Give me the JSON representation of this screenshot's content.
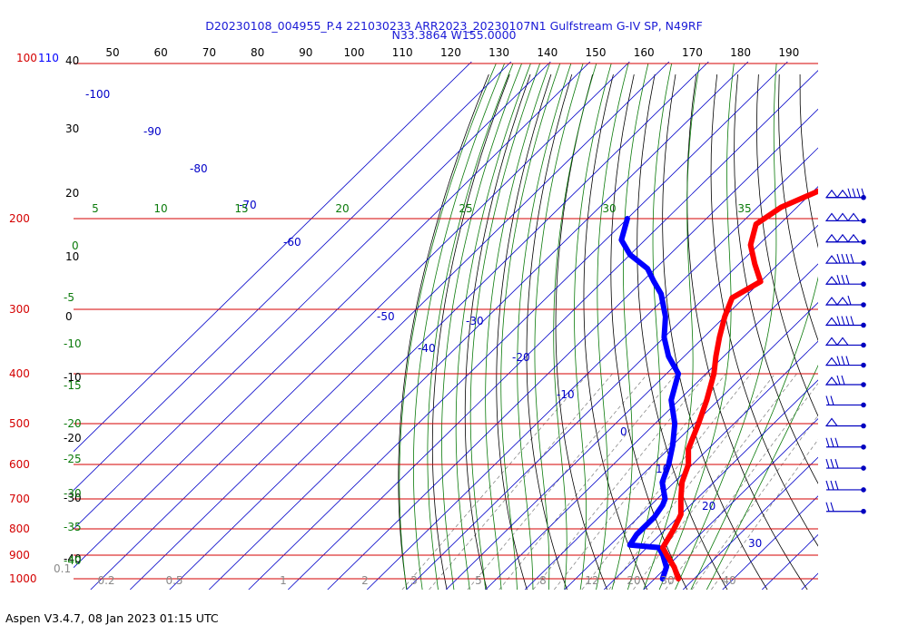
{
  "title_line1": "D20230108_004955_P.4 221030233 ARR2023_20230107N1 Gulfstream G-IV SP, N49RF",
  "title_line2": "N33.3864 W155.0000",
  "footer": "Aspen V3.4.7, 08 Jan 2023  01:15 UTC",
  "colors": {
    "isobar": "#d40000",
    "isotherm": "#0000c8",
    "dry_adiabat": "#000000",
    "moist_adiabat": "#0a7a0a",
    "mixing_ratio": "#8a8a8a",
    "temperature": "#ff0000",
    "dewpoint": "#0000ff",
    "wind": "#0000c0"
  },
  "chart_data": {
    "type": "skew-t",
    "pressure_levels_hPa": [
      "100-110",
      "200",
      "300",
      "400",
      "500",
      "600",
      "700",
      "800",
      "900",
      "1000"
    ],
    "top_scale": [
      "50",
      "60",
      "70",
      "80",
      "90",
      "100",
      "110",
      "120",
      "130",
      "140",
      "150",
      "160",
      "170",
      "180",
      "190"
    ],
    "left_scale": [
      "40",
      "30",
      "20",
      "10",
      "0",
      "-10",
      "-20",
      "-30",
      "-40"
    ],
    "isotherm_labels": [
      "-100",
      "-90",
      "-80",
      "-70",
      "-60",
      "-50",
      "-40",
      "-30",
      "-20",
      "-10",
      "0",
      "10",
      "20",
      "30"
    ],
    "moist_labels_top": [
      "5",
      "10",
      "15",
      "20",
      "25",
      "30",
      "35"
    ],
    "moist_labels_left": [
      "0",
      "-5",
      "-10",
      "-15",
      "-20",
      "-25",
      "-30",
      "-35",
      "-40"
    ],
    "mixing_ratio_labels": [
      "0.1",
      "0.2",
      "0.5",
      "1",
      "2",
      "3",
      "5",
      "8",
      "12",
      "20",
      "30",
      "40"
    ],
    "temperature_profile": [
      {
        "p": 1000,
        "t": 26
      },
      {
        "p": 950,
        "t": 22
      },
      {
        "p": 900,
        "t": 17
      },
      {
        "p": 870,
        "t": 14
      },
      {
        "p": 800,
        "t": 12
      },
      {
        "p": 750,
        "t": 10
      },
      {
        "p": 700,
        "t": 6
      },
      {
        "p": 650,
        "t": 2
      },
      {
        "p": 600,
        "t": -1
      },
      {
        "p": 560,
        "t": -5
      },
      {
        "p": 500,
        "t": -9
      },
      {
        "p": 450,
        "t": -13
      },
      {
        "p": 400,
        "t": -18
      },
      {
        "p": 370,
        "t": -22
      },
      {
        "p": 340,
        "t": -26
      },
      {
        "p": 310,
        "t": -30
      },
      {
        "p": 285,
        "t": -33
      },
      {
        "p": 265,
        "t": -30
      },
      {
        "p": 245,
        "t": -36
      },
      {
        "p": 225,
        "t": -42
      },
      {
        "p": 205,
        "t": -46
      },
      {
        "p": 190,
        "t": -44
      },
      {
        "p": 175,
        "t": -38
      },
      {
        "p": 165,
        "t": -36
      }
    ],
    "dewpoint_profile": [
      {
        "p": 1000,
        "t": 22
      },
      {
        "p": 950,
        "t": 20
      },
      {
        "p": 900,
        "t": 16
      },
      {
        "p": 870,
        "t": 13
      },
      {
        "p": 860,
        "t": 5
      },
      {
        "p": 820,
        "t": 4
      },
      {
        "p": 760,
        "t": 4
      },
      {
        "p": 720,
        "t": 3
      },
      {
        "p": 700,
        "t": 2
      },
      {
        "p": 650,
        "t": -3
      },
      {
        "p": 600,
        "t": -6
      },
      {
        "p": 550,
        "t": -10
      },
      {
        "p": 500,
        "t": -15
      },
      {
        "p": 450,
        "t": -22
      },
      {
        "p": 400,
        "t": -27
      },
      {
        "p": 370,
        "t": -34
      },
      {
        "p": 340,
        "t": -40
      },
      {
        "p": 310,
        "t": -45
      },
      {
        "p": 280,
        "t": -52
      },
      {
        "p": 265,
        "t": -57
      },
      {
        "p": 250,
        "t": -62
      },
      {
        "p": 235,
        "t": -70
      },
      {
        "p": 220,
        "t": -76
      },
      {
        "p": 200,
        "t": -80
      }
    ],
    "wind_barbs": [
      {
        "p": 182,
        "flags": 2,
        "full": 4
      },
      {
        "p": 202,
        "flags": 3,
        "full": 0
      },
      {
        "p": 222,
        "flags": 3,
        "full": 0
      },
      {
        "p": 244,
        "flags": 1,
        "full": 4
      },
      {
        "p": 268,
        "flags": 1,
        "full": 3
      },
      {
        "p": 294,
        "flags": 2,
        "full": 1
      },
      {
        "p": 322,
        "flags": 1,
        "full": 4
      },
      {
        "p": 352,
        "flags": 2,
        "full": 0
      },
      {
        "p": 385,
        "flags": 1,
        "full": 3
      },
      {
        "p": 420,
        "flags": 1,
        "full": 2
      },
      {
        "p": 460,
        "flags": 0,
        "full": 2
      },
      {
        "p": 505,
        "flags": 1,
        "full": 0
      },
      {
        "p": 555,
        "flags": 0,
        "full": 3
      },
      {
        "p": 610,
        "flags": 0,
        "full": 3
      },
      {
        "p": 672,
        "flags": 0,
        "full": 3
      },
      {
        "p": 740,
        "flags": 0,
        "full": 2
      }
    ]
  }
}
